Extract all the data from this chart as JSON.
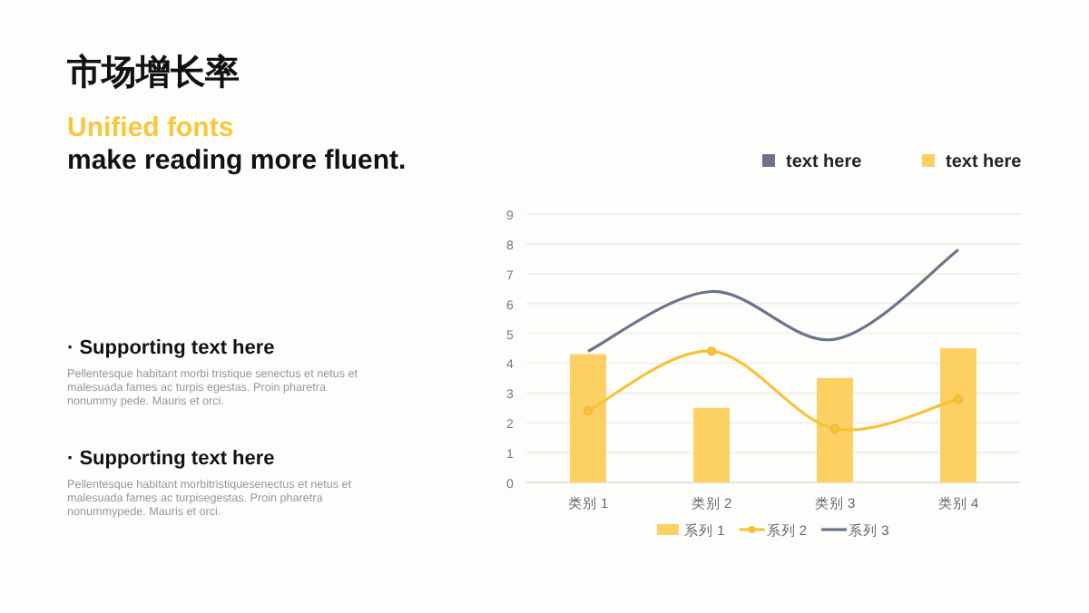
{
  "chart_data": {
    "type": "bar",
    "title": "市场增长率",
    "subtitle": "Unified fonts",
    "annotations": [
      "make reading more fluent.",
      "· Supporting text here",
      "Pellentesque habitant morbi tristique senectus et netus et malesuada fames ac turpis egestas. Proin pharetra nonummy pede. Mauris et orci.",
      "· Supporting text here",
      "Pellentesque habitant morbitristiquesenectus et netus et malesuada fames ac turpisegestas. Proin pharetra nonummypede. Mauris et orci.",
      "text here",
      "text here"
    ],
    "categories": [
      "类别 1",
      "类别 2",
      "类别 3",
      "类别 4"
    ],
    "series": [
      {
        "name": "系列 1",
        "color": "#fdd063",
        "values": [
          4.3,
          2.5,
          3.5,
          4.5
        ]
      },
      {
        "name": "系列 2",
        "type": "line",
        "color": "#f6c335",
        "marker": "circle",
        "values": [
          2.4,
          4.4,
          1.8,
          2.8
        ]
      },
      {
        "name": "系列 3",
        "type": "line",
        "color": "#6b7589",
        "marker": "none",
        "values": [
          4.4,
          6.4,
          4.8,
          7.8
        ]
      }
    ],
    "ylim": [
      0,
      9
    ],
    "yticks": [
      0,
      1,
      2,
      3,
      4,
      5,
      6,
      7,
      8,
      9
    ],
    "grid": "y",
    "legend": "bottom"
  }
}
